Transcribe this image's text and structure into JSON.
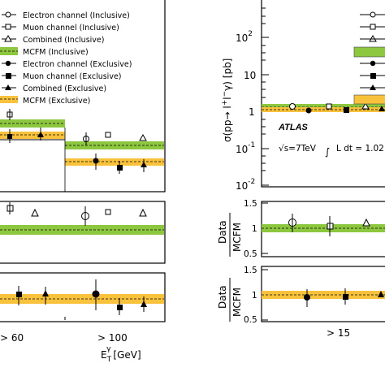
{
  "colors": {
    "inclusive_band": "#8dc63f",
    "exclusive_band": "#f9c23c",
    "marker": "#000000"
  },
  "left": {
    "legend": [
      {
        "label": "Electron channel (Inclusive)",
        "marker": "open-circle"
      },
      {
        "label": "Muon channel (Inclusive)",
        "marker": "open-square"
      },
      {
        "label": "Combined (Inclusive)",
        "marker": "open-triangle"
      },
      {
        "label": "MCFM (Inclusive)",
        "marker": "green-band"
      },
      {
        "label": "Electron channel (Exclusive)",
        "marker": "filled-circle"
      },
      {
        "label": "Muon channel (Exclusive)",
        "marker": "filled-square"
      },
      {
        "label": "Combined (Exclusive)",
        "marker": "filled-triangle"
      },
      {
        "label": "MCFM (Exclusive)",
        "marker": "yellow-band"
      }
    ],
    "xtick_labels": [
      "> 60",
      "> 100"
    ],
    "xlabel_main": "E",
    "xlabel_sub": "T",
    "xlabel_sup": "γ",
    "xlabel_unit": "[GeV]"
  },
  "right": {
    "ylabel_main": "σ(pp→ l",
    "ylabel_sup": "+",
    "ylabel_tail": "l",
    "ylabel_sup2": "−",
    "ylabel_end": "γ) [pb]",
    "yticks": [
      {
        "base": "10",
        "exp": "2"
      },
      {
        "base": "10",
        "exp": ""
      },
      {
        "base": "1",
        "exp": ""
      },
      {
        "base": "10",
        "exp": "-1"
      },
      {
        "base": "10",
        "exp": "-2"
      }
    ],
    "atlas": "ATLAS",
    "energy": "√s=7TeV",
    "lumi": "L dt = 1.02",
    "ratio_num": "Data",
    "ratio_den": "MCFM",
    "ratio_ticks_top": [
      "1.5",
      "1",
      "0.5"
    ],
    "ratio_ticks_bottom": [
      "1.5",
      "1",
      "0.5"
    ],
    "xtick_label": "> 15"
  },
  "chart_data": [
    {
      "type": "scatter",
      "title": "",
      "xlabel": "E_T^γ [GeV]",
      "categories": [
        "> 60",
        "> 100"
      ],
      "series": [
        {
          "name": "Electron channel (Inclusive)",
          "values": [
            null,
            0.42
          ]
        },
        {
          "name": "Muon channel (Inclusive)",
          "values": [
            null,
            0.44
          ]
        },
        {
          "name": "Combined (Inclusive)",
          "values": [
            null,
            0.43
          ]
        },
        {
          "name": "MCFM (Inclusive)",
          "values": [
            null,
            0.38
          ]
        },
        {
          "name": "Electron channel (Exclusive)",
          "values": [
            null,
            0.2
          ]
        },
        {
          "name": "Muon channel (Exclusive)",
          "values": [
            null,
            0.16
          ]
        },
        {
          "name": "Combined (Exclusive)",
          "values": [
            null,
            0.18
          ]
        },
        {
          "name": "MCFM (Exclusive)",
          "values": [
            null,
            0.2
          ]
        }
      ]
    },
    {
      "type": "scatter",
      "title": "",
      "xlabel": "",
      "ylabel": "σ(pp→ l+l−γ) [pb]",
      "yscale": "log",
      "ylim": [
        0.01,
        1000
      ],
      "categories": [
        "> 15"
      ],
      "series": [
        {
          "name": "Electron (Inclusive)",
          "values": [
            1.15
          ]
        },
        {
          "name": "Muon (Inclusive)",
          "values": [
            1.2
          ]
        },
        {
          "name": "Combined (Inclusive)",
          "values": [
            1.18
          ]
        },
        {
          "name": "MCFM (Inclusive)",
          "values": [
            1.15
          ]
        },
        {
          "name": "Electron (Exclusive)",
          "values": [
            1.0
          ]
        },
        {
          "name": "Muon (Exclusive)",
          "values": [
            1.02
          ]
        },
        {
          "name": "Combined (Exclusive)",
          "values": [
            1.05
          ]
        },
        {
          "name": "MCFM (Exclusive)",
          "values": [
            1.0
          ]
        }
      ]
    },
    {
      "type": "scatter",
      "ylabel": "Data/MCFM (Inclusive)",
      "ylim": [
        0.5,
        1.5
      ],
      "categories": [
        "> 15"
      ],
      "series": [
        {
          "name": "Electron",
          "values": [
            1.02
          ]
        },
        {
          "name": "Muon",
          "values": [
            1.04
          ]
        },
        {
          "name": "Combined",
          "values": [
            1.03
          ]
        }
      ]
    },
    {
      "type": "scatter",
      "ylabel": "Data/MCFM (Exclusive)",
      "ylim": [
        0.5,
        1.5
      ],
      "categories": [
        "> 15"
      ],
      "series": [
        {
          "name": "Electron",
          "values": [
            0.97
          ]
        },
        {
          "name": "Muon",
          "values": [
            0.99
          ]
        },
        {
          "name": "Combined",
          "values": [
            1.0
          ]
        }
      ]
    }
  ]
}
